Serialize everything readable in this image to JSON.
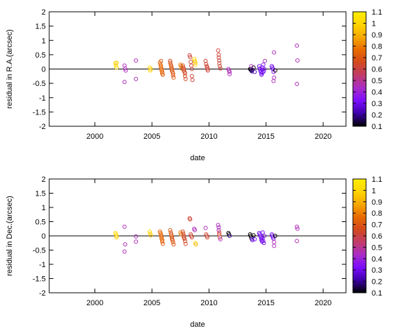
{
  "chart_data": [
    {
      "type": "scatter",
      "xlabel": "date",
      "ylabel": "residual in R.A.(arcsec)",
      "xlim": [
        1996,
        2022
      ],
      "ylim": [
        -2,
        2
      ],
      "xticks": [
        2000,
        2005,
        2010,
        2015,
        2020
      ],
      "yticks": [
        -2,
        -1.5,
        -1,
        -0.5,
        0,
        0.5,
        1,
        1.5,
        2
      ],
      "zero_line": true,
      "grid": false,
      "colorbar": {
        "placement": "right",
        "range": [
          0.1,
          1.1
        ],
        "ticks": [
          0.1,
          0.2,
          0.3,
          0.4,
          0.5,
          0.6,
          0.7,
          0.8,
          0.9,
          1,
          1.1
        ],
        "colormap": [
          "#000000",
          "#3d00a8",
          "#7b0cff",
          "#a92bc8",
          "#c13b6a",
          "#d3481e",
          "#e86a00",
          "#f6a800",
          "#ffd400",
          "#ffee00"
        ]
      },
      "series": [
        {
          "points": [
            [
              2001.8,
              0.2,
              1.0
            ],
            [
              2001.85,
              0.12,
              1.0
            ],
            [
              2001.9,
              0.05,
              1.0
            ],
            [
              2001.9,
              0.22,
              0.95
            ],
            [
              2002.6,
              0.12,
              0.45
            ],
            [
              2002.65,
              0.02,
              0.45
            ],
            [
              2002.7,
              -0.05,
              0.45
            ],
            [
              2002.6,
              -0.45,
              0.45
            ],
            [
              2003.6,
              0.3,
              0.45
            ],
            [
              2003.6,
              -0.35,
              0.45
            ],
            [
              2004.8,
              0.05,
              1.0
            ],
            [
              2004.85,
              -0.05,
              1.0
            ],
            [
              2004.9,
              0.0,
              0.95
            ],
            [
              2005.7,
              0.22,
              0.75
            ],
            [
              2005.75,
              0.15,
              0.75
            ],
            [
              2005.8,
              0.1,
              0.75
            ],
            [
              2005.8,
              0.05,
              0.75
            ],
            [
              2005.85,
              0.0,
              0.75
            ],
            [
              2005.85,
              -0.05,
              0.75
            ],
            [
              2005.9,
              -0.1,
              0.75
            ],
            [
              2005.9,
              -0.15,
              0.75
            ],
            [
              2005.95,
              -0.2,
              0.7
            ],
            [
              2005.8,
              0.28,
              0.7
            ],
            [
              2006.6,
              0.22,
              0.7
            ],
            [
              2006.65,
              0.15,
              0.7
            ],
            [
              2006.7,
              0.1,
              0.7
            ],
            [
              2006.7,
              0.05,
              0.7
            ],
            [
              2006.75,
              0.0,
              0.7
            ],
            [
              2006.75,
              -0.05,
              0.7
            ],
            [
              2006.8,
              -0.1,
              0.7
            ],
            [
              2006.85,
              -0.15,
              0.7
            ],
            [
              2006.85,
              -0.22,
              0.7
            ],
            [
              2006.9,
              -0.3,
              0.7
            ],
            [
              2006.6,
              0.28,
              0.65
            ],
            [
              2007.5,
              0.15,
              0.8
            ],
            [
              2007.55,
              0.1,
              0.8
            ],
            [
              2007.6,
              0.02,
              0.8
            ],
            [
              2007.7,
              0.12,
              0.65
            ],
            [
              2007.75,
              0.05,
              0.65
            ],
            [
              2007.8,
              0.0,
              0.65
            ],
            [
              2007.8,
              -0.05,
              0.65
            ],
            [
              2007.85,
              -0.1,
              0.65
            ],
            [
              2007.9,
              -0.15,
              0.65
            ],
            [
              2007.9,
              -0.25,
              0.65
            ],
            [
              2007.95,
              -0.35,
              0.65
            ],
            [
              2008.3,
              0.48,
              0.62
            ],
            [
              2008.35,
              0.42,
              0.62
            ],
            [
              2008.4,
              0.25,
              0.62
            ],
            [
              2008.45,
              0.12,
              0.62
            ],
            [
              2008.5,
              0.0,
              0.62
            ],
            [
              2008.5,
              -0.25,
              0.62
            ],
            [
              2008.55,
              -0.38,
              0.62
            ],
            [
              2008.7,
              0.35,
              1.0
            ],
            [
              2008.75,
              0.28,
              1.0
            ],
            [
              2008.8,
              0.22,
              0.9
            ],
            [
              2008.8,
              0.15,
              1.0
            ],
            [
              2009.7,
              0.28,
              0.62
            ],
            [
              2009.75,
              0.18,
              0.62
            ],
            [
              2009.8,
              0.1,
              0.62
            ],
            [
              2009.85,
              0.05,
              0.62
            ],
            [
              2009.85,
              0.0,
              0.62
            ],
            [
              2009.9,
              -0.05,
              0.62
            ],
            [
              2010.8,
              0.65,
              0.62
            ],
            [
              2010.85,
              0.5,
              0.62
            ],
            [
              2010.85,
              0.4,
              0.62
            ],
            [
              2010.9,
              0.3,
              0.62
            ],
            [
              2010.9,
              0.2,
              0.62
            ],
            [
              2010.95,
              0.1,
              0.62
            ],
            [
              2011.0,
              0.02,
              0.62
            ],
            [
              2011.7,
              0.0,
              0.45
            ],
            [
              2011.75,
              -0.05,
              0.45
            ],
            [
              2011.8,
              -0.1,
              0.45
            ],
            [
              2011.8,
              -0.18,
              0.45
            ],
            [
              2013.6,
              0.0,
              0.1
            ],
            [
              2013.65,
              -0.02,
              0.1
            ],
            [
              2013.7,
              -0.05,
              0.1
            ],
            [
              2013.75,
              -0.08,
              0.2
            ],
            [
              2013.8,
              -0.03,
              0.2
            ],
            [
              2013.9,
              0.05,
              0.1
            ],
            [
              2014.0,
              -0.1,
              0.25
            ],
            [
              2013.7,
              0.1,
              0.45
            ],
            [
              2014.4,
              0.1,
              0.3
            ],
            [
              2014.45,
              0.02,
              0.3
            ],
            [
              2014.5,
              -0.05,
              0.3
            ],
            [
              2014.55,
              -0.1,
              0.3
            ],
            [
              2014.6,
              -0.15,
              0.3
            ],
            [
              2014.6,
              -0.2,
              0.3
            ],
            [
              2014.65,
              -0.02,
              0.3
            ],
            [
              2014.7,
              0.05,
              0.3
            ],
            [
              2014.7,
              -0.12,
              0.3
            ],
            [
              2014.75,
              0.15,
              0.35
            ],
            [
              2014.8,
              -0.08,
              0.3
            ],
            [
              2014.85,
              0.0,
              0.35
            ],
            [
              2014.9,
              0.28,
              0.45
            ],
            [
              2015.5,
              0.1,
              0.3
            ],
            [
              2015.55,
              0.05,
              0.3
            ],
            [
              2015.6,
              0.0,
              0.3
            ],
            [
              2015.65,
              -0.1,
              0.35
            ],
            [
              2015.7,
              0.58,
              0.45
            ],
            [
              2015.7,
              -0.3,
              0.45
            ],
            [
              2015.65,
              -0.42,
              0.45
            ],
            [
              2015.8,
              -0.05,
              0.1
            ],
            [
              2017.7,
              0.82,
              0.45
            ],
            [
              2017.75,
              0.3,
              0.45
            ],
            [
              2017.7,
              -0.52,
              0.45
            ]
          ]
        }
      ]
    },
    {
      "type": "scatter",
      "xlabel": "date",
      "ylabel": "residual in Dec.(arcsec)",
      "xlim": [
        1996,
        2022
      ],
      "ylim": [
        -2,
        2
      ],
      "xticks": [
        2000,
        2005,
        2010,
        2015,
        2020
      ],
      "yticks": [
        -2,
        -1.5,
        -1,
        -0.5,
        0,
        0.5,
        1,
        1.5,
        2
      ],
      "zero_line": true,
      "grid": false,
      "colorbar": {
        "placement": "right",
        "range": [
          0.1,
          1.1
        ],
        "ticks": [
          0.1,
          0.2,
          0.3,
          0.4,
          0.5,
          0.6,
          0.7,
          0.8,
          0.9,
          1,
          1.1
        ],
        "colormap": [
          "#000000",
          "#3d00a8",
          "#7b0cff",
          "#a92bc8",
          "#c13b6a",
          "#d3481e",
          "#e86a00",
          "#f6a800",
          "#ffd400",
          "#ffee00"
        ]
      },
      "series": [
        {
          "points": [
            [
              2001.8,
              0.1,
              1.0
            ],
            [
              2001.85,
              0.05,
              1.0
            ],
            [
              2001.9,
              0.0,
              1.0
            ],
            [
              2001.9,
              -0.05,
              0.95
            ],
            [
              2002.6,
              0.32,
              0.45
            ],
            [
              2002.65,
              -0.3,
              0.45
            ],
            [
              2002.6,
              -0.55,
              0.45
            ],
            [
              2003.6,
              -0.02,
              0.45
            ],
            [
              2003.6,
              -0.2,
              0.45
            ],
            [
              2004.8,
              0.15,
              1.0
            ],
            [
              2004.85,
              0.08,
              1.0
            ],
            [
              2004.9,
              0.02,
              0.95
            ],
            [
              2005.7,
              0.15,
              0.75
            ],
            [
              2005.75,
              0.1,
              0.75
            ],
            [
              2005.8,
              0.05,
              0.75
            ],
            [
              2005.8,
              0.0,
              0.75
            ],
            [
              2005.85,
              -0.05,
              0.75
            ],
            [
              2005.85,
              -0.1,
              0.75
            ],
            [
              2005.9,
              -0.15,
              0.75
            ],
            [
              2005.9,
              -0.2,
              0.75
            ],
            [
              2005.95,
              -0.28,
              0.7
            ],
            [
              2006.6,
              0.2,
              0.7
            ],
            [
              2006.65,
              0.12,
              0.7
            ],
            [
              2006.7,
              0.05,
              0.7
            ],
            [
              2006.7,
              0.0,
              0.7
            ],
            [
              2006.75,
              -0.05,
              0.7
            ],
            [
              2006.75,
              -0.1,
              0.7
            ],
            [
              2006.8,
              -0.15,
              0.7
            ],
            [
              2006.85,
              -0.22,
              0.7
            ],
            [
              2006.9,
              -0.3,
              0.7
            ],
            [
              2007.5,
              0.12,
              0.8
            ],
            [
              2007.55,
              0.05,
              0.8
            ],
            [
              2007.7,
              0.15,
              0.65
            ],
            [
              2007.75,
              0.08,
              0.65
            ],
            [
              2007.8,
              0.0,
              0.65
            ],
            [
              2007.8,
              -0.05,
              0.65
            ],
            [
              2007.85,
              -0.1,
              0.65
            ],
            [
              2007.9,
              -0.18,
              0.65
            ],
            [
              2007.95,
              -0.28,
              0.65
            ],
            [
              2008.3,
              0.62,
              0.62
            ],
            [
              2008.35,
              0.58,
              0.62
            ],
            [
              2008.4,
              0.05,
              0.62
            ],
            [
              2008.45,
              0.0,
              0.62
            ],
            [
              2008.5,
              -0.05,
              0.62
            ],
            [
              2008.7,
              0.25,
              0.45
            ],
            [
              2008.75,
              0.2,
              0.45
            ],
            [
              2008.8,
              -0.25,
              1.0
            ],
            [
              2008.85,
              -0.3,
              0.9
            ],
            [
              2009.7,
              0.28,
              0.45
            ],
            [
              2009.75,
              0.05,
              0.62
            ],
            [
              2009.8,
              0.0,
              0.62
            ],
            [
              2009.85,
              -0.05,
              0.62
            ],
            [
              2010.8,
              0.38,
              0.45
            ],
            [
              2010.85,
              0.3,
              0.45
            ],
            [
              2010.85,
              0.2,
              0.45
            ],
            [
              2010.9,
              0.12,
              0.62
            ],
            [
              2010.9,
              0.05,
              0.62
            ],
            [
              2010.95,
              -0.05,
              0.62
            ],
            [
              2011.0,
              -0.12,
              0.45
            ],
            [
              2011.7,
              0.1,
              0.1
            ],
            [
              2011.75,
              0.05,
              0.1
            ],
            [
              2011.8,
              0.0,
              0.2
            ],
            [
              2013.6,
              0.05,
              0.1
            ],
            [
              2013.65,
              0.0,
              0.1
            ],
            [
              2013.7,
              -0.05,
              0.1
            ],
            [
              2013.75,
              -0.1,
              0.2
            ],
            [
              2013.8,
              -0.15,
              0.3
            ],
            [
              2013.9,
              0.02,
              0.1
            ],
            [
              2014.0,
              -0.12,
              0.3
            ],
            [
              2014.4,
              0.1,
              0.3
            ],
            [
              2014.45,
              0.05,
              0.3
            ],
            [
              2014.5,
              0.0,
              0.3
            ],
            [
              2014.55,
              -0.05,
              0.3
            ],
            [
              2014.6,
              -0.1,
              0.3
            ],
            [
              2014.6,
              -0.15,
              0.3
            ],
            [
              2014.65,
              -0.2,
              0.3
            ],
            [
              2014.7,
              0.12,
              0.3
            ],
            [
              2014.7,
              -0.08,
              0.3
            ],
            [
              2014.75,
              -0.18,
              0.35
            ],
            [
              2014.8,
              -0.25,
              0.3
            ],
            [
              2014.85,
              0.0,
              0.35
            ],
            [
              2015.5,
              0.05,
              0.3
            ],
            [
              2015.55,
              0.0,
              0.3
            ],
            [
              2015.6,
              -0.05,
              0.3
            ],
            [
              2015.65,
              -0.1,
              0.35
            ],
            [
              2015.7,
              -0.22,
              0.45
            ],
            [
              2015.7,
              -0.35,
              0.45
            ],
            [
              2015.8,
              0.0,
              0.1
            ],
            [
              2017.7,
              0.32,
              0.45
            ],
            [
              2017.75,
              0.25,
              0.45
            ],
            [
              2017.7,
              -0.18,
              0.45
            ]
          ]
        }
      ]
    }
  ]
}
